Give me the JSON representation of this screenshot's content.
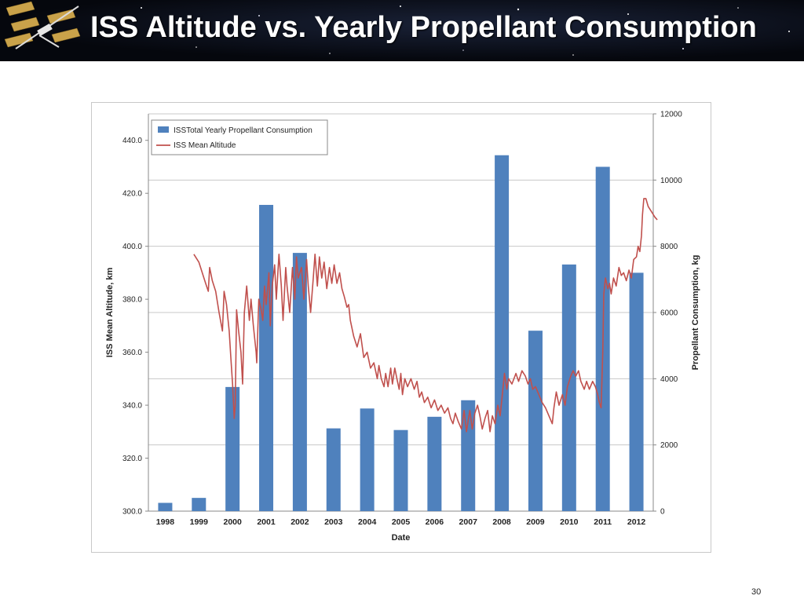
{
  "slide": {
    "title": "ISS Altitude vs. Yearly Propellant Consumption",
    "page_number": "30"
  },
  "colors": {
    "bar": "#4f81bd",
    "line": "#c0504d",
    "grid": "#c8c8c8",
    "banner": "#05070d"
  },
  "icons": {
    "logo": "iss-station-icon"
  },
  "chart_data": {
    "type": "bar+line",
    "xlabel": "Date",
    "ylabel_left": "ISS Mean Altitude, km",
    "ylabel_right": "Propellant Consumption, kg",
    "ylim_left": [
      300,
      450
    ],
    "ylim_right": [
      0,
      12000
    ],
    "yticks_left": [
      "300.0",
      "320.0",
      "340.0",
      "360.0",
      "380.0",
      "400.0",
      "420.0",
      "440.0"
    ],
    "yticks_right": [
      "0",
      "2000",
      "4000",
      "6000",
      "8000",
      "10000",
      "12000"
    ],
    "grid": true,
    "legend_position": "top-left",
    "categories": [
      "1998",
      "1999",
      "2000",
      "2001",
      "2002",
      "2003",
      "2004",
      "2005",
      "2006",
      "2007",
      "2008",
      "2009",
      "2010",
      "2011",
      "2012"
    ],
    "series": [
      {
        "name": "ISSTotal  Yearly Propellant Consumption",
        "axis": "right",
        "type": "bar",
        "values": [
          250,
          400,
          3750,
          9250,
          7800,
          2500,
          3100,
          2450,
          2850,
          3350,
          10750,
          5450,
          7450,
          10400,
          7200
        ]
      },
      {
        "name": "ISS Mean Altitude",
        "axis": "left",
        "type": "line",
        "points": [
          [
            1998.85,
            397
          ],
          [
            1999.0,
            394
          ],
          [
            1999.1,
            390
          ],
          [
            1999.2,
            386
          ],
          [
            1999.28,
            383
          ],
          [
            1999.32,
            392
          ],
          [
            1999.4,
            387
          ],
          [
            1999.5,
            383
          ],
          [
            1999.6,
            375
          ],
          [
            1999.7,
            368
          ],
          [
            1999.75,
            383
          ],
          [
            1999.82,
            378
          ],
          [
            1999.9,
            368
          ],
          [
            1999.95,
            358
          ],
          [
            2000.0,
            348
          ],
          [
            2000.05,
            335
          ],
          [
            2000.08,
            340
          ],
          [
            2000.12,
            376
          ],
          [
            2000.18,
            368
          ],
          [
            2000.25,
            360
          ],
          [
            2000.3,
            348
          ],
          [
            2000.35,
            375
          ],
          [
            2000.42,
            385
          ],
          [
            2000.5,
            372
          ],
          [
            2000.55,
            380
          ],
          [
            2000.62,
            370
          ],
          [
            2000.7,
            360
          ],
          [
            2000.72,
            356
          ],
          [
            2000.78,
            380
          ],
          [
            2000.85,
            376
          ],
          [
            2000.9,
            372
          ],
          [
            2000.95,
            385
          ],
          [
            2001.0,
            378
          ],
          [
            2001.08,
            390
          ],
          [
            2001.12,
            370
          ],
          [
            2001.18,
            385
          ],
          [
            2001.25,
            393
          ],
          [
            2001.3,
            380
          ],
          [
            2001.38,
            397
          ],
          [
            2001.45,
            385
          ],
          [
            2001.5,
            372
          ],
          [
            2001.58,
            392
          ],
          [
            2001.62,
            385
          ],
          [
            2001.7,
            375
          ],
          [
            2001.78,
            392
          ],
          [
            2001.85,
            380
          ],
          [
            2001.9,
            396
          ],
          [
            2001.95,
            388
          ],
          [
            2002.05,
            392
          ],
          [
            2002.12,
            380
          ],
          [
            2002.2,
            395
          ],
          [
            2002.25,
            385
          ],
          [
            2002.32,
            375
          ],
          [
            2002.4,
            388
          ],
          [
            2002.45,
            397
          ],
          [
            2002.52,
            385
          ],
          [
            2002.58,
            396
          ],
          [
            2002.65,
            388
          ],
          [
            2002.72,
            394
          ],
          [
            2002.8,
            384
          ],
          [
            2002.88,
            392
          ],
          [
            2002.95,
            386
          ],
          [
            2003.02,
            393
          ],
          [
            2003.1,
            386
          ],
          [
            2003.18,
            390
          ],
          [
            2003.25,
            384
          ],
          [
            2003.32,
            381
          ],
          [
            2003.4,
            377
          ],
          [
            2003.45,
            378
          ],
          [
            2003.5,
            372
          ],
          [
            2003.6,
            366
          ],
          [
            2003.7,
            362
          ],
          [
            2003.8,
            367
          ],
          [
            2003.9,
            358
          ],
          [
            2004.0,
            360
          ],
          [
            2004.1,
            354
          ],
          [
            2004.2,
            356
          ],
          [
            2004.3,
            350
          ],
          [
            2004.35,
            355
          ],
          [
            2004.42,
            350
          ],
          [
            2004.5,
            347
          ],
          [
            2004.55,
            352
          ],
          [
            2004.62,
            347
          ],
          [
            2004.7,
            354
          ],
          [
            2004.75,
            348
          ],
          [
            2004.82,
            354
          ],
          [
            2004.9,
            349
          ],
          [
            2004.95,
            346
          ],
          [
            2005.0,
            352
          ],
          [
            2005.05,
            344
          ],
          [
            2005.12,
            350
          ],
          [
            2005.2,
            347
          ],
          [
            2005.3,
            350
          ],
          [
            2005.4,
            346
          ],
          [
            2005.48,
            349
          ],
          [
            2005.55,
            343
          ],
          [
            2005.62,
            345
          ],
          [
            2005.7,
            341
          ],
          [
            2005.8,
            343
          ],
          [
            2005.9,
            339
          ],
          [
            2006.0,
            342
          ],
          [
            2006.1,
            338
          ],
          [
            2006.2,
            340
          ],
          [
            2006.3,
            337
          ],
          [
            2006.4,
            339
          ],
          [
            2006.48,
            335
          ],
          [
            2006.55,
            333
          ],
          [
            2006.62,
            337
          ],
          [
            2006.7,
            334
          ],
          [
            2006.8,
            331
          ],
          [
            2006.88,
            338
          ],
          [
            2006.95,
            330
          ],
          [
            2007.0,
            334
          ],
          [
            2007.05,
            338
          ],
          [
            2007.12,
            331
          ],
          [
            2007.2,
            337
          ],
          [
            2007.28,
            340
          ],
          [
            2007.35,
            336
          ],
          [
            2007.42,
            331
          ],
          [
            2007.5,
            335
          ],
          [
            2007.58,
            338
          ],
          [
            2007.65,
            330
          ],
          [
            2007.72,
            336
          ],
          [
            2007.8,
            333
          ],
          [
            2007.88,
            340
          ],
          [
            2007.95,
            336
          ],
          [
            2008.0,
            342
          ],
          [
            2008.08,
            352
          ],
          [
            2008.15,
            346
          ],
          [
            2008.2,
            350
          ],
          [
            2008.3,
            348
          ],
          [
            2008.42,
            352
          ],
          [
            2008.5,
            349
          ],
          [
            2008.6,
            353
          ],
          [
            2008.7,
            351
          ],
          [
            2008.78,
            348
          ],
          [
            2008.85,
            350
          ],
          [
            2008.92,
            346
          ],
          [
            2009.0,
            347
          ],
          [
            2009.1,
            344
          ],
          [
            2009.2,
            341
          ],
          [
            2009.3,
            339
          ],
          [
            2009.4,
            336
          ],
          [
            2009.5,
            333
          ],
          [
            2009.55,
            339
          ],
          [
            2009.62,
            345
          ],
          [
            2009.7,
            340
          ],
          [
            2009.8,
            344
          ],
          [
            2009.88,
            340
          ],
          [
            2009.95,
            347
          ],
          [
            2010.05,
            351
          ],
          [
            2010.12,
            353
          ],
          [
            2010.2,
            351
          ],
          [
            2010.28,
            353
          ],
          [
            2010.35,
            349
          ],
          [
            2010.45,
            346
          ],
          [
            2010.52,
            349
          ],
          [
            2010.6,
            346
          ],
          [
            2010.7,
            349
          ],
          [
            2010.78,
            347
          ],
          [
            2010.85,
            344
          ],
          [
            2010.9,
            341
          ],
          [
            2010.95,
            339
          ],
          [
            2011.0,
            360
          ],
          [
            2011.03,
            382
          ],
          [
            2011.08,
            388
          ],
          [
            2011.15,
            384
          ],
          [
            2011.2,
            386
          ],
          [
            2011.25,
            382
          ],
          [
            2011.32,
            388
          ],
          [
            2011.4,
            385
          ],
          [
            2011.48,
            392
          ],
          [
            2011.55,
            389
          ],
          [
            2011.62,
            390
          ],
          [
            2011.7,
            387
          ],
          [
            2011.78,
            391
          ],
          [
            2011.85,
            388
          ],
          [
            2011.92,
            395
          ],
          [
            2012.0,
            396
          ],
          [
            2012.05,
            400
          ],
          [
            2012.1,
            398
          ],
          [
            2012.15,
            404
          ],
          [
            2012.18,
            412
          ],
          [
            2012.22,
            418
          ],
          [
            2012.28,
            418
          ],
          [
            2012.35,
            415
          ],
          [
            2012.45,
            413
          ],
          [
            2012.55,
            411
          ],
          [
            2012.62,
            410
          ]
        ]
      }
    ]
  }
}
